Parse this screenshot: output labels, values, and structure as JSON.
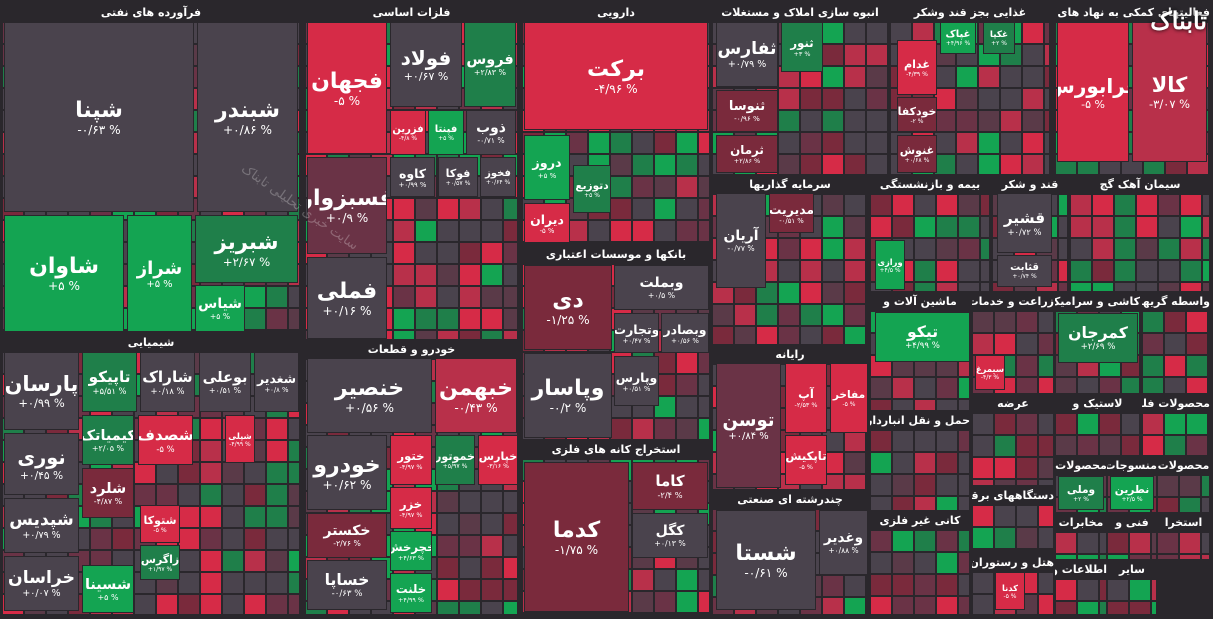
{
  "logo": "تابناک",
  "watermark": "سایت خبری تحلیلی تابناک",
  "sectors": [
    {
      "title": "فرآورده های نفتی",
      "tiles": [
        {
          "symbol": "شپنا",
          "change": "-۰/۶۳ %",
          "color": "#4a434d"
        },
        {
          "symbol": "شبندر",
          "change": "+۰/۸۶ %",
          "color": "#4a434d"
        },
        {
          "symbol": "شاوان",
          "change": "+۵ %",
          "color": "#14a452"
        },
        {
          "symbol": "شراز",
          "change": "+۵ %",
          "color": "#14a452"
        },
        {
          "symbol": "شبریز",
          "change": "+۲/۶۷ %",
          "color": "#1f7f4a"
        },
        {
          "symbol": "شیاس",
          "change": "+۵ %",
          "color": "#14a452"
        }
      ]
    },
    {
      "title": "شیمیایی",
      "tiles": [
        {
          "symbol": "پارسان",
          "change": "+۰/۹۹ %",
          "color": "#4a434d"
        },
        {
          "symbol": "تاپیکو",
          "change": "+۵/۵۱ %",
          "color": "#1f7f4a"
        },
        {
          "symbol": "شاراک",
          "change": "+۰/۱۸ %",
          "color": "#4a434d"
        },
        {
          "symbol": "بوعلی",
          "change": "+۰/۵۱ %",
          "color": "#4a434d"
        },
        {
          "symbol": "شغدیر",
          "change": "+۰/۸ %",
          "color": "#4a434d"
        },
        {
          "symbol": "نوری",
          "change": "+۰/۴۵ %",
          "color": "#4a434d"
        },
        {
          "symbol": "کیمیاتک",
          "change": "+۲/۰۵ %",
          "color": "#1f7f4a"
        },
        {
          "symbol": "شصدف",
          "change": "-۵ %",
          "color": "#d62b47"
        },
        {
          "symbol": "شپلی",
          "change": "-۴/۹۹ %",
          "color": "#d62b47"
        },
        {
          "symbol": "شپدیس",
          "change": "+۰/۷۹ %",
          "color": "#4a434d"
        },
        {
          "symbol": "شلرد",
          "change": "-۴/۸۷ %",
          "color": "#7a2a3c"
        },
        {
          "symbol": "شتوکا",
          "change": "-۵ %",
          "color": "#d62b47"
        },
        {
          "symbol": "خراسان",
          "change": "+۰/۰۷ %",
          "color": "#4a434d"
        },
        {
          "symbol": "زاگرس",
          "change": "+۱/۹۷ %",
          "color": "#1f7f4a"
        },
        {
          "symbol": "شسینا",
          "change": "+۵ %",
          "color": "#14a452"
        }
      ]
    },
    {
      "title": "فلزات اساسی",
      "tiles": [
        {
          "symbol": "فجهان",
          "change": "-۵ %",
          "color": "#d62b47"
        },
        {
          "symbol": "فولاد",
          "change": "+۰/۶۷ %",
          "color": "#4a434d"
        },
        {
          "symbol": "فروس",
          "change": "+۲/۸۳ %",
          "color": "#1f7f4a"
        },
        {
          "symbol": "فزرین",
          "change": "-۴/۸ %",
          "color": "#d62b47"
        },
        {
          "symbol": "فپنتا",
          "change": "+۵ %",
          "color": "#14a452"
        },
        {
          "symbol": "ذوب",
          "change": "-۰/۷۱ %",
          "color": "#4a434d"
        },
        {
          "symbol": "فسبزوار",
          "change": "+۰/۹ %",
          "color": "#6a3346"
        },
        {
          "symbol": "کاوه",
          "change": "+۰/۹۹ %",
          "color": "#4a434d"
        },
        {
          "symbol": "فوکا",
          "change": "+۰/۵۷ %",
          "color": "#4a434d"
        },
        {
          "symbol": "فخوز",
          "change": "+۰/۶۴ %",
          "color": "#4a434d"
        },
        {
          "symbol": "فملی",
          "change": "+۰/۱۶ %",
          "color": "#4a434d"
        }
      ]
    },
    {
      "title": "خودرو و قطعات",
      "tiles": [
        {
          "symbol": "خنصیر",
          "change": "+۰/۵۶ %",
          "color": "#4a434d"
        },
        {
          "symbol": "خبهمن",
          "change": "-۰/۴۳ %",
          "color": "#b8304a"
        },
        {
          "symbol": "خودرو",
          "change": "+۰/۶۲ %",
          "color": "#4a434d"
        },
        {
          "symbol": "ختور",
          "change": "-۴/۹۷ %",
          "color": "#d62b47"
        },
        {
          "symbol": "خموتور",
          "change": "+۵/۹۷ %",
          "color": "#1f7f4a"
        },
        {
          "symbol": "خپارس",
          "change": "-۳/۱۶ %",
          "color": "#d62b47"
        },
        {
          "symbol": "خکستر",
          "change": "-۲/۷۶ %",
          "color": "#7a2a3c"
        },
        {
          "symbol": "خزر",
          "change": "-۴/۹۷ %",
          "color": "#d62b47"
        },
        {
          "symbol": "خچرخش",
          "change": "+۴/۶۳ %",
          "color": "#14a452"
        },
        {
          "symbol": "خساپا",
          "change": "-۰/۶۳ %",
          "color": "#4a434d"
        },
        {
          "symbol": "خلنت",
          "change": "+۴/۹۹ %",
          "color": "#14a452"
        }
      ]
    },
    {
      "title": "دارویی",
      "tiles": [
        {
          "symbol": "برکت",
          "change": "-۴/۹۶ %",
          "color": "#d62b47"
        },
        {
          "symbol": "دروز",
          "change": "+۵ %",
          "color": "#14a452"
        },
        {
          "symbol": "دتوزیع",
          "change": "+۵ %",
          "color": "#1f7f4a"
        },
        {
          "symbol": "دیران",
          "change": "-۵ %",
          "color": "#d62b47"
        }
      ]
    },
    {
      "title": "بانکها و موسسات اعتباری",
      "tiles": [
        {
          "symbol": "دی",
          "change": "-۱/۲۵ %",
          "color": "#7a2a3c"
        },
        {
          "symbol": "وبملت",
          "change": "+۰/۵ %",
          "color": "#4a434d"
        },
        {
          "symbol": "وتجارت",
          "change": "+۰/۴۷ %",
          "color": "#4a434d"
        },
        {
          "symbol": "وبصادر",
          "change": "+۰/۵۶ %",
          "color": "#4a434d"
        },
        {
          "symbol": "وپاسار",
          "change": "-۰/۲ %",
          "color": "#4a434d"
        },
        {
          "symbol": "وپارس",
          "change": "+۰/۵۱ %",
          "color": "#4a434d"
        }
      ]
    },
    {
      "title": "استخراج کانه های فلزی",
      "tiles": [
        {
          "symbol": "کدما",
          "change": "-۱/۷۵ %",
          "color": "#7a2a3c"
        },
        {
          "symbol": "کاما",
          "change": "-۲/۴ %",
          "color": "#7a2a3c"
        },
        {
          "symbol": "کگل",
          "change": "+۰/۱۳ %",
          "color": "#4a434d"
        }
      ]
    },
    {
      "title": "انبوه سازی املاک و مستغلات",
      "tiles": [
        {
          "symbol": "ثفارس",
          "change": "+۰/۷۹ %",
          "color": "#4a434d"
        },
        {
          "symbol": "ثنور",
          "change": "+۳ %",
          "color": "#1f7f4a"
        },
        {
          "symbol": "ثنوسا",
          "change": "-۰/۹۶ %",
          "color": "#7a2a3c"
        },
        {
          "symbol": "ثرمان",
          "change": "+۲/۸۶ %",
          "color": "#7a2a3c"
        }
      ]
    },
    {
      "title": "سرمایه گذاریها",
      "tiles": [
        {
          "symbol": "آریان",
          "change": "-۰/۷۷ %",
          "color": "#4a434d"
        },
        {
          "symbol": "مدیریت",
          "change": "-۰/۵۱ %",
          "color": "#7a2a3c"
        }
      ]
    },
    {
      "title": "رایانه",
      "tiles": [
        {
          "symbol": "توسن",
          "change": "+۰/۸۴ %",
          "color": "#6a3346"
        },
        {
          "symbol": "آپ",
          "change": "-۲/۵۳ %",
          "color": "#d62b47"
        },
        {
          "symbol": "مفاخر",
          "change": "-۵ %",
          "color": "#d62b47"
        },
        {
          "symbol": "تاپکیش",
          "change": "-۵ %",
          "color": "#d62b47"
        }
      ]
    },
    {
      "title": "چندرشته ای صنعتی",
      "tiles": [
        {
          "symbol": "شستا",
          "change": "-۰/۶۱ %",
          "color": "#4a434d"
        },
        {
          "symbol": "وغدیر",
          "change": "+۰/۸۸ %",
          "color": "#4a434d"
        }
      ]
    },
    {
      "title": "غذایی بجز قند وشکر",
      "tiles": [
        {
          "symbol": "غکپا",
          "change": "+۲ %",
          "color": "#1f7f4a"
        },
        {
          "symbol": "غپاک",
          "change": "+۴/۹۶ %",
          "color": "#14a452"
        },
        {
          "symbol": "غدام",
          "change": "-۴/۳۹ %",
          "color": "#d62b47"
        },
        {
          "symbol": "خودکفا",
          "change": "-۲ %",
          "color": "#7a2a3c"
        },
        {
          "symbol": "غنوش",
          "change": "+۰/۶۸ %",
          "color": "#7a2a3c"
        }
      ]
    },
    {
      "title": "بیمه و بازنشستگی",
      "tiles": [
        {
          "symbol": "ورازی",
          "change": "+۴/۵ %",
          "color": "#14a452"
        }
      ]
    },
    {
      "title": "ماشین آلات و",
      "tiles": [
        {
          "symbol": "تیکو",
          "change": "+۴/۹۹ %",
          "color": "#14a452"
        }
      ]
    },
    {
      "title": "قند و شکر",
      "tiles": [
        {
          "symbol": "قشیر",
          "change": "+۰/۷۲ %",
          "color": "#4a434d"
        },
        {
          "symbol": "قثابت",
          "change": "+۰/۷۴ %",
          "color": "#4a434d"
        }
      ]
    },
    {
      "title": "سیمان آهک گچ",
      "tiles": []
    },
    {
      "title": "فعالیتهای کمکی به نهاد های مالی",
      "tiles": [
        {
          "symbol": "فرابورس",
          "change": "-۵ %",
          "color": "#d62b47"
        },
        {
          "symbol": "کالا",
          "change": "-۳/۰۷ %",
          "color": "#b8304a"
        }
      ]
    },
    {
      "title": "کاشی و سرامیک",
      "tiles": [
        {
          "symbol": "کمرجان",
          "change": "+۲/۶۹ %",
          "color": "#1f7f4a"
        }
      ]
    },
    {
      "title": "واسطه گریهای",
      "tiles": []
    },
    {
      "title": "زراعت و خدمات",
      "tiles": [
        {
          "symbol": "سیمرغ",
          "change": "-۴/۳ %",
          "color": "#d62b47"
        }
      ]
    },
    {
      "title": "لاستیک و",
      "tiles": []
    },
    {
      "title": "محصولات فلزی",
      "tiles": []
    },
    {
      "title": "عرضه",
      "tiles": []
    },
    {
      "title": "حمل و نقل انبارداری",
      "tiles": []
    },
    {
      "title": "کانی غیر فلزی",
      "tiles": []
    },
    {
      "title": "دستگاههای برقی",
      "tiles": []
    },
    {
      "title": "هتل و رستوران",
      "tiles": [
        {
          "symbol": "کدنا",
          "change": "-۵ %",
          "color": "#d62b47"
        }
      ]
    },
    {
      "title": "محصولات",
      "tiles": [
        {
          "symbol": "وملی",
          "change": "+۲ %",
          "color": "#1f7f4a"
        }
      ]
    },
    {
      "title": "منسوجات",
      "tiles": [
        {
          "symbol": "نطرین",
          "change": "+۲/۵ %",
          "color": "#14a452"
        }
      ]
    },
    {
      "title": "محصولات",
      "tiles": []
    },
    {
      "title": "مخابرات",
      "tiles": []
    },
    {
      "title": "فنی و",
      "tiles": []
    },
    {
      "title": "استخرا",
      "tiles": []
    },
    {
      "title": "اطلاعات و",
      "tiles": []
    },
    {
      "title": "سایر",
      "tiles": []
    }
  ]
}
